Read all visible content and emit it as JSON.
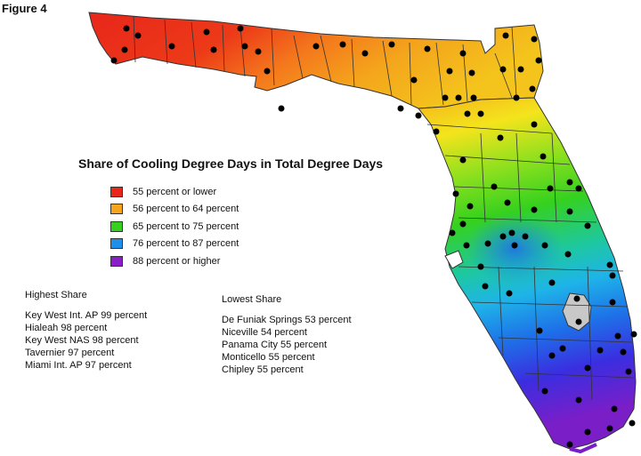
{
  "figure_label": "Figure 4",
  "legend": {
    "title": "Share of Cooling Degree Days in Total Degree Days",
    "items": [
      {
        "label": "55 percent or lower",
        "color": "#e8261b"
      },
      {
        "label": "56 percent to 64 percent",
        "color": "#f4a51c"
      },
      {
        "label": "65 percent to 75 percent",
        "color": "#35d11e"
      },
      {
        "label": "76 percent to 87 percent",
        "color": "#1e90e8"
      },
      {
        "label": "88 percent or higher",
        "color": "#8a1ec8"
      }
    ]
  },
  "highest_share": {
    "title": "Highest Share",
    "entries": [
      "Key West Int. AP 99 percent",
      "Hialeah 98 percent",
      "Key West NAS 98 percent",
      "Tavernier 97 percent",
      "Miami Int. AP 97 percent"
    ]
  },
  "lowest_share": {
    "title": "Lowest Share",
    "entries": [
      "De Funiak Springs 53 percent",
      "Niceville 54 percent",
      "Panama City 55 percent",
      "Monticello 55 percent",
      "Chipley 55 percent"
    ]
  },
  "map_colors": {
    "red": "#e8261b",
    "orange": "#f4a51c",
    "yellow": "#f4e41c",
    "green": "#35d11e",
    "cyan": "#1ec8d8",
    "blue": "#1e70e8",
    "purple": "#7a1ec8",
    "lake": "#c8c8c8",
    "county_line": "#333333"
  }
}
